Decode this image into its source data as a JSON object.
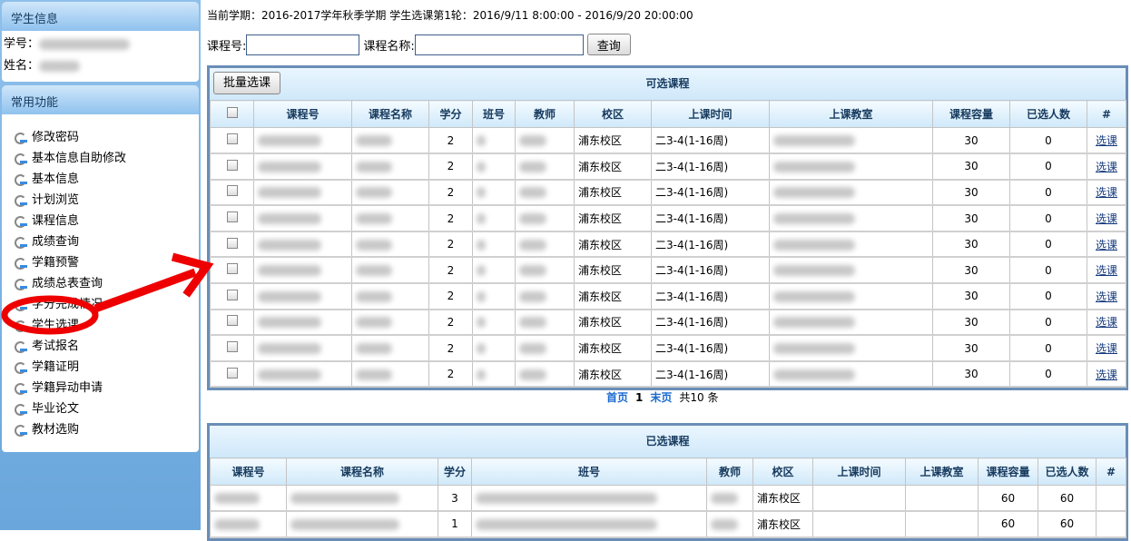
{
  "sidebar": {
    "student_info_title": "学生信息",
    "student_id_label": "学号：",
    "name_label": "姓名：",
    "functions_title": "常用功能",
    "items": [
      "修改密码",
      "基本信息自助修改",
      "基本信息",
      "计划浏览",
      "课程信息",
      "成绩查询",
      "学籍预警",
      "成绩总表查询",
      "学分完成情况",
      "学生选课",
      "考试报名",
      "学籍证明",
      "学籍异动申请",
      "毕业论文",
      "教材选购"
    ],
    "highlighted": "学生选课"
  },
  "header": {
    "term_text": "当前学期：2016-2017学年秋季学期  学生选课第1轮：2016/9/11 8:00:00 - 2016/9/20 20:00:00"
  },
  "search": {
    "course_no_label": "课程号:",
    "course_no_value": "",
    "course_name_label": "课程名称:",
    "course_name_value": "",
    "query_button": "查询"
  },
  "available": {
    "title": "可选课程",
    "batch_button": "批量选课",
    "columns": [
      "",
      "课程号",
      "课程名称",
      "学分",
      "班号",
      "教师",
      "校区",
      "上课时间",
      "上课教室",
      "课程容量",
      "已选人数",
      "#"
    ],
    "rows": [
      {
        "credit": "2",
        "campus": "浦东校区",
        "time": "二3-4(1-16周)",
        "capacity": "30",
        "selected": "0",
        "action": "选课"
      },
      {
        "credit": "2",
        "campus": "浦东校区",
        "time": "二3-4(1-16周)",
        "capacity": "30",
        "selected": "0",
        "action": "选课"
      },
      {
        "credit": "2",
        "campus": "浦东校区",
        "time": "二3-4(1-16周)",
        "capacity": "30",
        "selected": "0",
        "action": "选课"
      },
      {
        "credit": "2",
        "campus": "浦东校区",
        "time": "二3-4(1-16周)",
        "capacity": "30",
        "selected": "0",
        "action": "选课"
      },
      {
        "credit": "2",
        "campus": "浦东校区",
        "time": "二3-4(1-16周)",
        "capacity": "30",
        "selected": "0",
        "action": "选课"
      },
      {
        "credit": "2",
        "campus": "浦东校区",
        "time": "二3-4(1-16周)",
        "capacity": "30",
        "selected": "0",
        "action": "选课"
      },
      {
        "credit": "2",
        "campus": "浦东校区",
        "time": "二3-4(1-16周)",
        "capacity": "30",
        "selected": "0",
        "action": "选课"
      },
      {
        "credit": "2",
        "campus": "浦东校区",
        "time": "二3-4(1-16周)",
        "capacity": "30",
        "selected": "0",
        "action": "选课"
      },
      {
        "credit": "2",
        "campus": "浦东校区",
        "time": "二3-4(1-16周)",
        "capacity": "30",
        "selected": "0",
        "action": "选课"
      },
      {
        "credit": "2",
        "campus": "浦东校区",
        "time": "二3-4(1-16周)",
        "capacity": "30",
        "selected": "0",
        "action": "选课"
      }
    ],
    "pager": {
      "first": "首页",
      "current": "1",
      "last": "末页",
      "total": "共10 条"
    }
  },
  "selected": {
    "title": "已选课程",
    "columns": [
      "课程号",
      "课程名称",
      "学分",
      "班号",
      "教师",
      "校区",
      "上课时间",
      "上课教室",
      "课程容量",
      "已选人数",
      "#"
    ],
    "rows": [
      {
        "credit": "3",
        "campus": "浦东校区",
        "time": "",
        "room": "",
        "capacity": "60",
        "selected": "60"
      },
      {
        "credit": "1",
        "campus": "浦东校区",
        "time": "",
        "room": "",
        "capacity": "60",
        "selected": "60"
      }
    ]
  },
  "annotation_color": "#ee0000"
}
